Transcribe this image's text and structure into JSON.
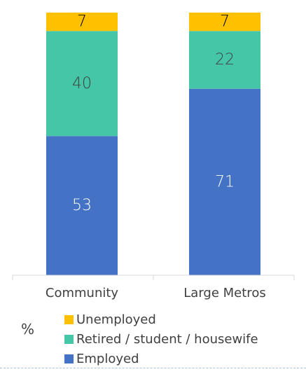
{
  "chart_data": {
    "type": "bar",
    "stacked": true,
    "unit": "%",
    "categories": [
      "Community",
      "Large Metros"
    ],
    "series": [
      {
        "name": "Employed",
        "values": [
          53,
          71
        ],
        "color": "#4472C4",
        "label_color": "#ffffff"
      },
      {
        "name": "Retired / student / housewife",
        "values": [
          40,
          22
        ],
        "color": "#45C6A7",
        "label_color": "#404040"
      },
      {
        "name": "Unemployed",
        "values": [
          7,
          7
        ],
        "color": "#FFC000",
        "label_color": "#000000"
      }
    ],
    "ylim": [
      0,
      100
    ],
    "grid": false,
    "legend_position": "bottom"
  }
}
